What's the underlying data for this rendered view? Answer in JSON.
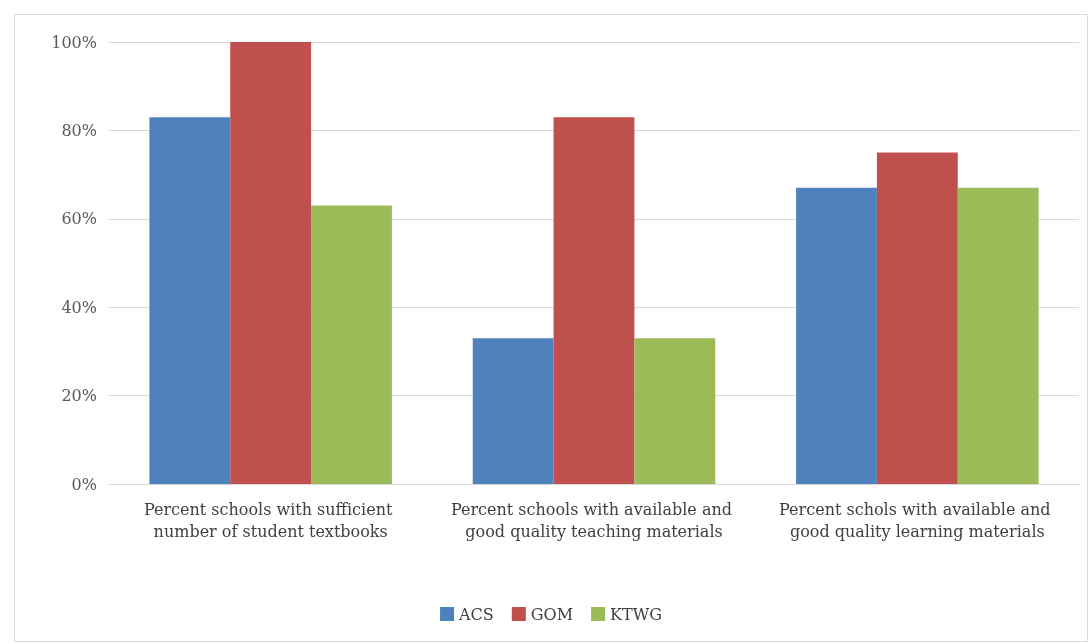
{
  "chart_data": {
    "type": "bar",
    "categories": [
      "Percent schools with sufficient number of student textbooks",
      "Percent schools with available and good quality teaching materials",
      "Percent schols with available and good quality learning materials"
    ],
    "series": [
      {
        "name": "ACS",
        "color": "#4f81bd",
        "values": [
          83,
          33,
          67
        ]
      },
      {
        "name": "GOM",
        "color": "#c0504d",
        "values": [
          100,
          83,
          75
        ]
      },
      {
        "name": "KTWG",
        "color": "#9bbb59",
        "values": [
          63,
          33,
          67
        ]
      }
    ],
    "ylim": [
      0,
      100
    ],
    "yticks": [
      {
        "value": 0,
        "label": "0%"
      },
      {
        "value": 20,
        "label": "20%"
      },
      {
        "value": 40,
        "label": "40%"
      },
      {
        "value": 60,
        "label": "60%"
      },
      {
        "value": 80,
        "label": "80%"
      },
      {
        "value": 100,
        "label": "100%"
      }
    ],
    "grid": "y",
    "legend": "bottom"
  }
}
